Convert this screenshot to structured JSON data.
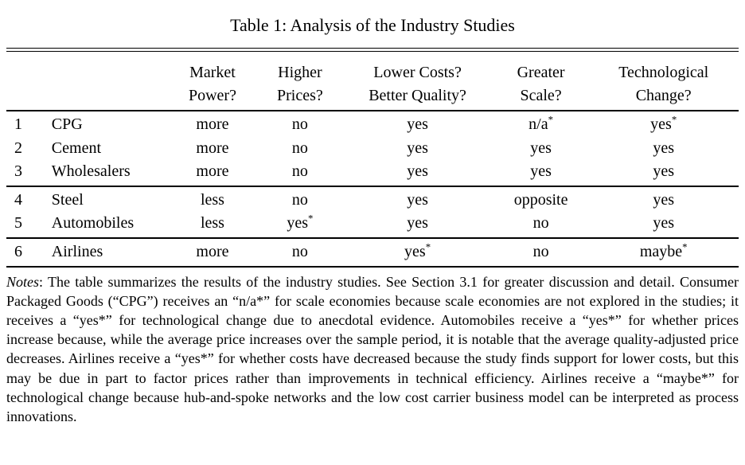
{
  "page": {
    "title": "Table 1: Analysis of the Industry Studies"
  },
  "table": {
    "headers": [
      {
        "line1": "Market",
        "line2": "Power?"
      },
      {
        "line1": "Higher",
        "line2": "Prices?"
      },
      {
        "line1": "Lower Costs?",
        "line2": "Better Quality?"
      },
      {
        "line1": "Greater",
        "line2": "Scale?"
      },
      {
        "line1": "Technological",
        "line2": "Change?"
      }
    ],
    "groups": [
      {
        "rows": [
          {
            "num": "1",
            "industry": "CPG",
            "values": [
              {
                "text": "more"
              },
              {
                "text": "no"
              },
              {
                "text": "yes"
              },
              {
                "text": "n/a",
                "sup": "*"
              },
              {
                "text": "yes",
                "sup": "*"
              }
            ]
          },
          {
            "num": "2",
            "industry": "Cement",
            "values": [
              {
                "text": "more"
              },
              {
                "text": "no"
              },
              {
                "text": "yes"
              },
              {
                "text": "yes"
              },
              {
                "text": "yes"
              }
            ]
          },
          {
            "num": "3",
            "industry": "Wholesalers",
            "values": [
              {
                "text": "more"
              },
              {
                "text": "no"
              },
              {
                "text": "yes"
              },
              {
                "text": "yes"
              },
              {
                "text": "yes"
              }
            ]
          }
        ]
      },
      {
        "rows": [
          {
            "num": "4",
            "industry": "Steel",
            "values": [
              {
                "text": "less"
              },
              {
                "text": "no"
              },
              {
                "text": "yes"
              },
              {
                "text": "opposite"
              },
              {
                "text": "yes"
              }
            ]
          },
          {
            "num": "5",
            "industry": "Automobiles",
            "values": [
              {
                "text": "less"
              },
              {
                "text": "yes",
                "sup": "*"
              },
              {
                "text": "yes"
              },
              {
                "text": "no"
              },
              {
                "text": "yes"
              }
            ]
          }
        ]
      },
      {
        "rows": [
          {
            "num": "6",
            "industry": "Airlines",
            "values": [
              {
                "text": "more"
              },
              {
                "text": "no"
              },
              {
                "text": "yes",
                "sup": "*"
              },
              {
                "text": "no"
              },
              {
                "text": "maybe",
                "sup": "*"
              }
            ]
          }
        ]
      }
    ]
  },
  "notes": {
    "label": "Notes",
    "text": ": The table summarizes the results of the industry studies. See Section 3.1 for greater discussion and detail. Consumer Packaged Goods (“CPG”) receives an “n/a*” for scale economies because scale economies are not explored in the studies; it receives a “yes*” for technological change due to anecdotal evidence. Automobiles receive a “yes*” for whether prices increase because, while the average price increases over the sample period, it is notable that the average quality-adjusted price decreases. Airlines receive a “yes*” for whether costs have decreased because the study finds support for lower costs, but this may be due in part to factor prices rather than improvements in technical efficiency. Airlines receive a “maybe*” for technological change because hub-and-spoke networks and the low cost carrier business model can be interpreted as process innovations."
  }
}
